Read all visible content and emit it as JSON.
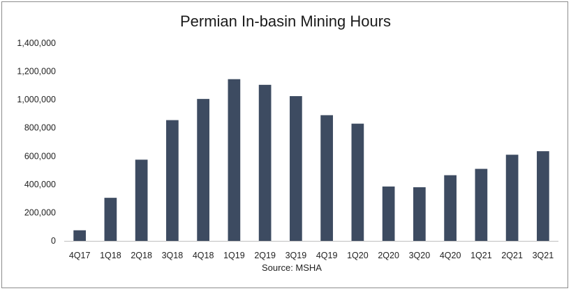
{
  "chart_data": {
    "type": "bar",
    "title": "Permian In-basin Mining Hours",
    "xlabel": "Source: MSHA",
    "ylabel": "",
    "categories": [
      "4Q17",
      "1Q18",
      "2Q18",
      "3Q18",
      "4Q18",
      "1Q19",
      "2Q19",
      "3Q19",
      "4Q19",
      "1Q20",
      "2Q20",
      "3Q20",
      "4Q20",
      "1Q21",
      "2Q21",
      "3Q21"
    ],
    "values": [
      75000,
      305000,
      575000,
      855000,
      1005000,
      1145000,
      1105000,
      1025000,
      890000,
      830000,
      385000,
      380000,
      465000,
      510000,
      610000,
      635000
    ],
    "ylim": [
      0,
      1400000
    ],
    "yticks": [
      "0",
      "200,000",
      "400,000",
      "600,000",
      "800,000",
      "1,000,000",
      "1,200,000",
      "1,400,000"
    ],
    "grid": false,
    "legend": "none",
    "bar_color": "#3d4b61"
  }
}
